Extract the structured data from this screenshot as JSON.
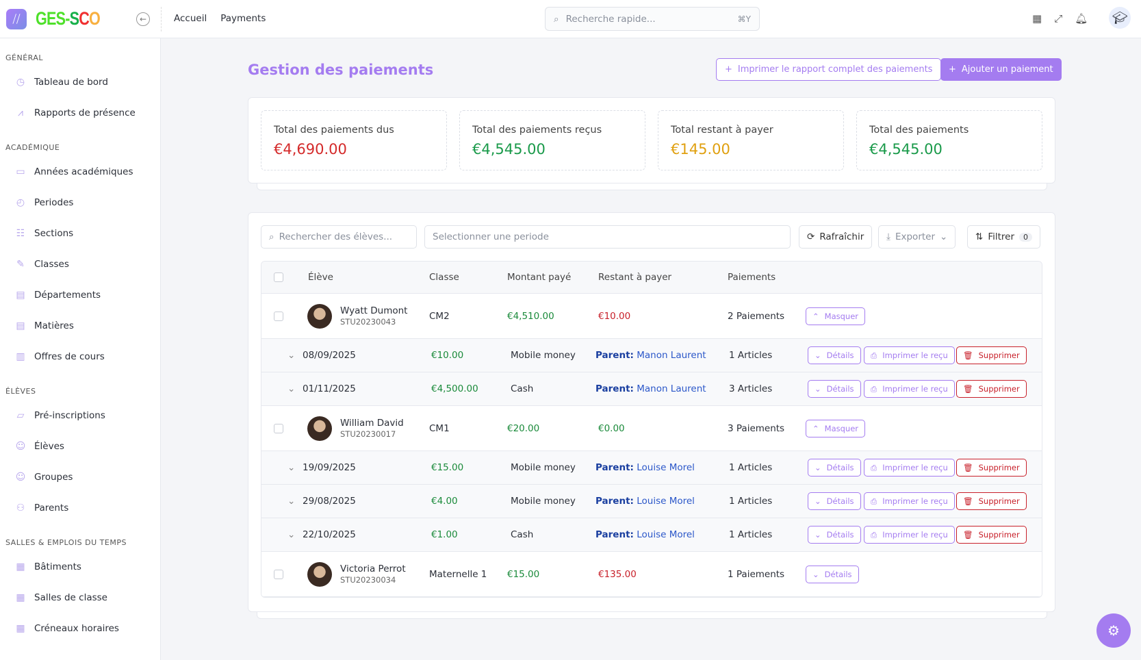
{
  "header": {
    "brand": "GES-SCO",
    "nav": [
      "Accueil",
      "Payments"
    ],
    "search_placeholder": "Recherche rapide...",
    "search_shortcut": "⌘Y"
  },
  "sidebar": [
    {
      "section": "GÉNÉRAL",
      "items": [
        {
          "label": "Tableau de bord",
          "icon": "◷"
        },
        {
          "label": "Rapports de présence",
          "icon": "⩘"
        }
      ]
    },
    {
      "section": "ACADÉMIQUE",
      "items": [
        {
          "label": "Années académiques",
          "icon": "▭"
        },
        {
          "label": "Periodes",
          "icon": "◴"
        },
        {
          "label": "Sections",
          "icon": "☷"
        },
        {
          "label": "Classes",
          "icon": "✎"
        },
        {
          "label": "Départements",
          "icon": "▤"
        },
        {
          "label": "Matières",
          "icon": "▤"
        },
        {
          "label": "Offres de cours",
          "icon": "▥"
        }
      ]
    },
    {
      "section": "ÉLÈVES",
      "items": [
        {
          "label": "Pré-inscriptions",
          "icon": "▱"
        },
        {
          "label": "Élèves",
          "icon": "☺"
        },
        {
          "label": "Groupes",
          "icon": "☺"
        },
        {
          "label": "Parents",
          "icon": "⚇"
        }
      ]
    },
    {
      "section": "SALLES & EMPLOIS DU TEMPS",
      "items": [
        {
          "label": "Bâtiments",
          "icon": "▦"
        },
        {
          "label": "Salles de classe",
          "icon": "▦"
        },
        {
          "label": "Créneaux horaires",
          "icon": "▦"
        }
      ]
    }
  ],
  "page": {
    "title": "Gestion des paiements",
    "print_report": "Imprimer le rapport complet des paiements",
    "add_payment": "Ajouter un paiement"
  },
  "stats": [
    {
      "label": "Total des paiements dus",
      "value": "€4,690.00",
      "color": "#d42a2a"
    },
    {
      "label": "Total des paiements reçus",
      "value": "€4,545.00",
      "color": "#1a9a4a"
    },
    {
      "label": "Total restant à payer",
      "value": "€145.00",
      "color": "#e0a010"
    },
    {
      "label": "Total des paiements",
      "value": "€4,545.00",
      "color": "#1a9a4a"
    }
  ],
  "toolbar": {
    "search_placeholder": "Rechercher des élèves...",
    "period_placeholder": "Selectionner une periode",
    "refresh": "Rafraîchir",
    "export": "Exporter",
    "filter": "Filtrer",
    "filter_count": "0"
  },
  "table": {
    "headers": [
      "Élève",
      "Classe",
      "Montant payé",
      "Restant à payer",
      "Paiements"
    ],
    "labels": {
      "hide": "Masquer",
      "details": "Détails",
      "print": "Imprimer le reçu",
      "delete": "Supprimer",
      "parent": "Parent:"
    },
    "students": [
      {
        "name": "Wyatt Dumont",
        "id": "STU20230043",
        "class": "CM2",
        "paid": "€4,510.00",
        "remaining": "€10.00",
        "remaining_color": "r",
        "payments": "2 Paiements",
        "expanded": true,
        "rows": [
          {
            "date": "08/09/2025",
            "amount": "€10.00",
            "method": "Mobile money",
            "parent": "Manon Laurent",
            "articles": "1 Articles"
          },
          {
            "date": "01/11/2025",
            "amount": "€4,500.00",
            "method": "Cash",
            "parent": "Manon Laurent",
            "articles": "3 Articles"
          }
        ]
      },
      {
        "name": "William David",
        "id": "STU20230017",
        "class": "CM1",
        "paid": "€20.00",
        "remaining": "€0.00",
        "remaining_color": "g",
        "payments": "3 Paiements",
        "expanded": true,
        "rows": [
          {
            "date": "19/09/2025",
            "amount": "€15.00",
            "method": "Mobile money",
            "parent": "Louise Morel",
            "articles": "1 Articles"
          },
          {
            "date": "29/08/2025",
            "amount": "€4.00",
            "method": "Mobile money",
            "parent": "Louise Morel",
            "articles": "1 Articles"
          },
          {
            "date": "22/10/2025",
            "amount": "€1.00",
            "method": "Cash",
            "parent": "Louise Morel",
            "articles": "1 Articles"
          }
        ]
      },
      {
        "name": "Victoria Perrot",
        "id": "STU20230034",
        "class": "Maternelle 1",
        "paid": "€15.00",
        "remaining": "€135.00",
        "remaining_color": "r",
        "payments": "1 Paiements",
        "expanded": false,
        "rows": []
      }
    ]
  }
}
